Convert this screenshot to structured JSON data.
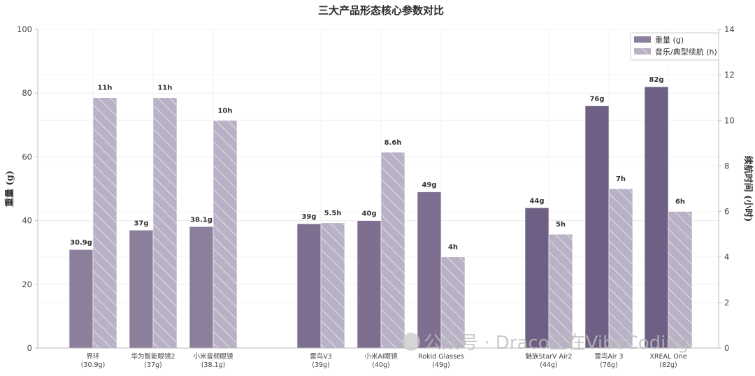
{
  "chart_data": {
    "type": "bar",
    "title": "三大产品形态核心参数对比",
    "ylabel_left": "重量 (g)",
    "ylabel_right": "续航时间 (小时)",
    "ylim_left": [
      0,
      100
    ],
    "ylim_right": [
      0,
      14
    ],
    "yticks_left": [
      "0",
      "20",
      "40",
      "60",
      "80",
      "100"
    ],
    "yticks_right": [
      "0",
      "2",
      "4",
      "6",
      "8",
      "10",
      "12",
      "14"
    ],
    "legend_position": "top-right",
    "grid": true,
    "groups": [
      {
        "categories": [
          "界环",
          "华为智能眼镜2",
          "小米音频眼镜"
        ],
        "sublabels": [
          "(30.9g)",
          "(37g)",
          "(38.1g)"
        ]
      },
      {
        "categories": [
          "雷鸟V3",
          "小米AI眼镜",
          "Rokid Glasses"
        ],
        "sublabels": [
          "(39g)",
          "(40g)",
          "(49g)"
        ]
      },
      {
        "categories": [
          "魅族StarV Air2",
          "雷鸟Air 3",
          "XREAL One"
        ],
        "sublabels": [
          "(44g)",
          "(76g)",
          "(82g)"
        ]
      }
    ],
    "series": [
      {
        "name": "重量 (g)",
        "axis": "left",
        "values": [
          30.9,
          37,
          38.1,
          39,
          40,
          49,
          44,
          76,
          82
        ],
        "labels": [
          "30.9g",
          "37g",
          "38.1g",
          "39g",
          "40g",
          "49g",
          "44g",
          "76g",
          "82g"
        ]
      },
      {
        "name": "音乐/典型续航 (h)",
        "axis": "right",
        "values": [
          11,
          11,
          10,
          5.5,
          8.6,
          4,
          5,
          7,
          6
        ],
        "labels": [
          "11h",
          "11h",
          "10h",
          "5.5h",
          "8.6h",
          "4h",
          "5h",
          "7h",
          "6h"
        ]
      }
    ],
    "colors": {
      "weight_bars": [
        "#8b7f9b",
        "#8b7f9b",
        "#8b7f9b",
        "#7e6f91",
        "#7e6f91",
        "#7e6f91",
        "#6e6084",
        "#6e6084",
        "#6e6084"
      ],
      "battery_fill": "#b9b1c5",
      "hatch": "#ffffff",
      "grid": "#ececec",
      "axis": "#bbbbbb"
    }
  },
  "watermark": "公众号 · Draco正在VibeCoding"
}
